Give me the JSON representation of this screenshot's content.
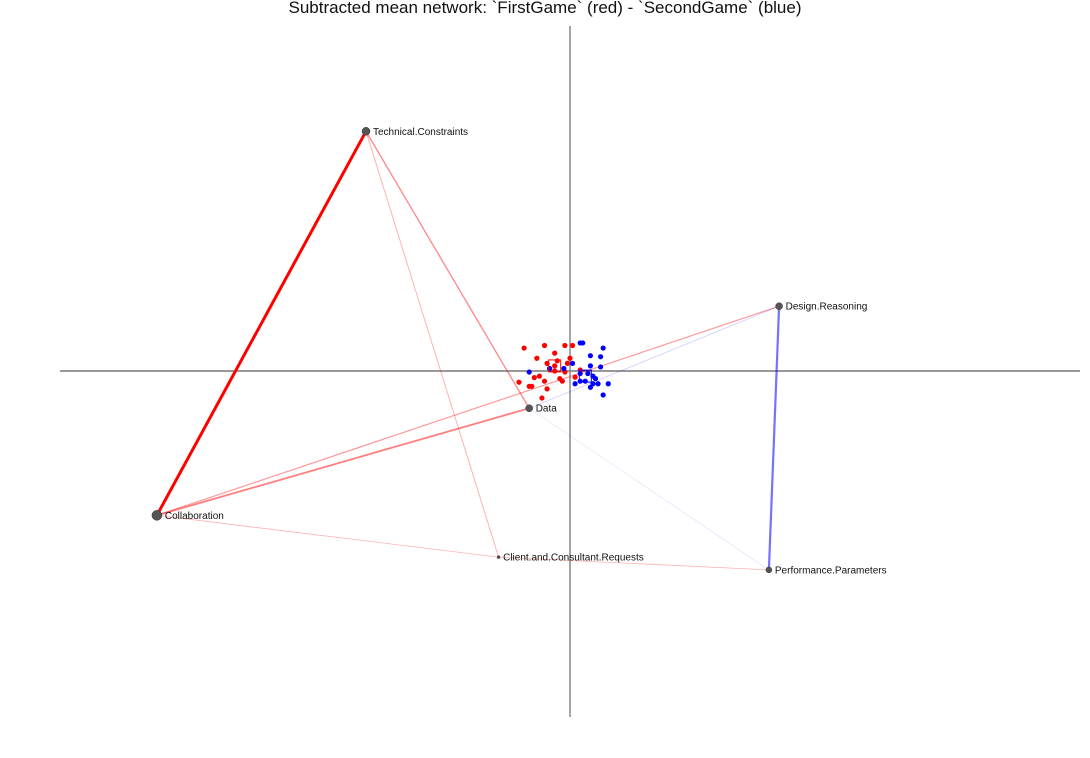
{
  "chart_data": {
    "type": "network",
    "title": "Subtracted mean network: `FirstGame` (red) - `SecondGame` (blue)",
    "xlim": [
      -1.0,
      1.0
    ],
    "ylim": [
      -0.67,
      0.67
    ],
    "grid": false,
    "axes_lines": true,
    "colors": {
      "first": "#ff0000",
      "second": "#0000ff",
      "node": "#555555",
      "axis": "#888888"
    },
    "nodes": [
      {
        "name": "Technical.Constraints",
        "x": -0.4,
        "y": 0.47,
        "size": 4
      },
      {
        "name": "Design.Reasoning",
        "x": 0.41,
        "y": 0.127,
        "size": 3.5
      },
      {
        "name": "Data",
        "x": -0.08,
        "y": -0.073,
        "size": 3.5
      },
      {
        "name": "Collaboration",
        "x": -0.81,
        "y": -0.283,
        "size": 5
      },
      {
        "name": "Client.and.Consultant.Requests",
        "x": -0.14,
        "y": -0.365,
        "size": 1.5
      },
      {
        "name": "Performance.Parameters",
        "x": 0.39,
        "y": -0.39,
        "size": 3
      }
    ],
    "edges": [
      {
        "source": "Technical.Constraints",
        "target": "Collaboration",
        "color": "red",
        "weight": 3.0,
        "alpha": 1.0
      },
      {
        "source": "Technical.Constraints",
        "target": "Data",
        "color": "red",
        "weight": 1.4,
        "alpha": 0.45
      },
      {
        "source": "Technical.Constraints",
        "target": "Client.and.Consultant.Requests",
        "color": "red",
        "weight": 1.0,
        "alpha": 0.3
      },
      {
        "source": "Collaboration",
        "target": "Data",
        "color": "red",
        "weight": 1.8,
        "alpha": 0.5
      },
      {
        "source": "Collaboration",
        "target": "Design.Reasoning",
        "color": "red",
        "weight": 1.2,
        "alpha": 0.4
      },
      {
        "source": "Collaboration",
        "target": "Client.and.Consultant.Requests",
        "color": "red",
        "weight": 0.8,
        "alpha": 0.3
      },
      {
        "source": "Client.and.Consultant.Requests",
        "target": "Performance.Parameters",
        "color": "red",
        "weight": 0.8,
        "alpha": 0.3
      },
      {
        "source": "Data",
        "target": "Design.Reasoning",
        "color": "blue",
        "weight": 0.8,
        "alpha": 0.2
      },
      {
        "source": "Data",
        "target": "Performance.Parameters",
        "color": "blue",
        "weight": 0.7,
        "alpha": 0.12
      },
      {
        "source": "Design.Reasoning",
        "target": "Performance.Parameters",
        "color": "blue",
        "weight": 2.2,
        "alpha": 0.55
      }
    ],
    "points_first": [
      [
        -0.09,
        0.045
      ],
      [
        -0.05,
        0.05
      ],
      [
        -0.03,
        0.035
      ],
      [
        -0.01,
        0.05
      ],
      [
        0.005,
        0.05
      ],
      [
        -0.065,
        0.025
      ],
      [
        -0.045,
        0.015
      ],
      [
        -0.025,
        0.02
      ],
      [
        -0.04,
        0.005
      ],
      [
        -0.005,
        0.015
      ],
      [
        -0.03,
        0.0
      ],
      [
        -0.01,
        -0.002
      ],
      [
        0.02,
        0.002
      ],
      [
        -0.06,
        -0.01
      ],
      [
        -0.05,
        -0.02
      ],
      [
        -0.02,
        -0.015
      ],
      [
        -0.015,
        -0.02
      ],
      [
        0.01,
        -0.012
      ],
      [
        -0.1,
        -0.022
      ],
      [
        -0.08,
        -0.03
      ],
      [
        -0.075,
        -0.03
      ],
      [
        -0.045,
        -0.035
      ],
      [
        -0.055,
        -0.053
      ],
      [
        -0.07,
        -0.013
      ],
      [
        -0.03,
        0.01
      ],
      [
        0.0,
        0.025
      ]
    ],
    "points_second": [
      [
        0.02,
        0.055
      ],
      [
        0.025,
        0.055
      ],
      [
        0.065,
        0.045
      ],
      [
        0.04,
        0.03
      ],
      [
        0.06,
        0.028
      ],
      [
        0.005,
        0.015
      ],
      [
        0.04,
        0.01
      ],
      [
        0.06,
        0.008
      ],
      [
        -0.012,
        0.005
      ],
      [
        -0.08,
        -0.002
      ],
      [
        0.02,
        -0.005
      ],
      [
        0.035,
        -0.005
      ],
      [
        0.045,
        -0.01
      ],
      [
        0.02,
        -0.02
      ],
      [
        0.03,
        -0.02
      ],
      [
        0.045,
        -0.025
      ],
      [
        0.055,
        -0.025
      ],
      [
        0.075,
        -0.025
      ],
      [
        0.05,
        -0.015
      ],
      [
        0.01,
        -0.025
      ],
      [
        0.04,
        -0.032
      ],
      [
        0.065,
        -0.047
      ],
      [
        -0.04,
        0.005
      ]
    ],
    "means": {
      "first": [
        -0.03,
        0.01
      ],
      "second": [
        0.03,
        -0.01
      ]
    }
  }
}
